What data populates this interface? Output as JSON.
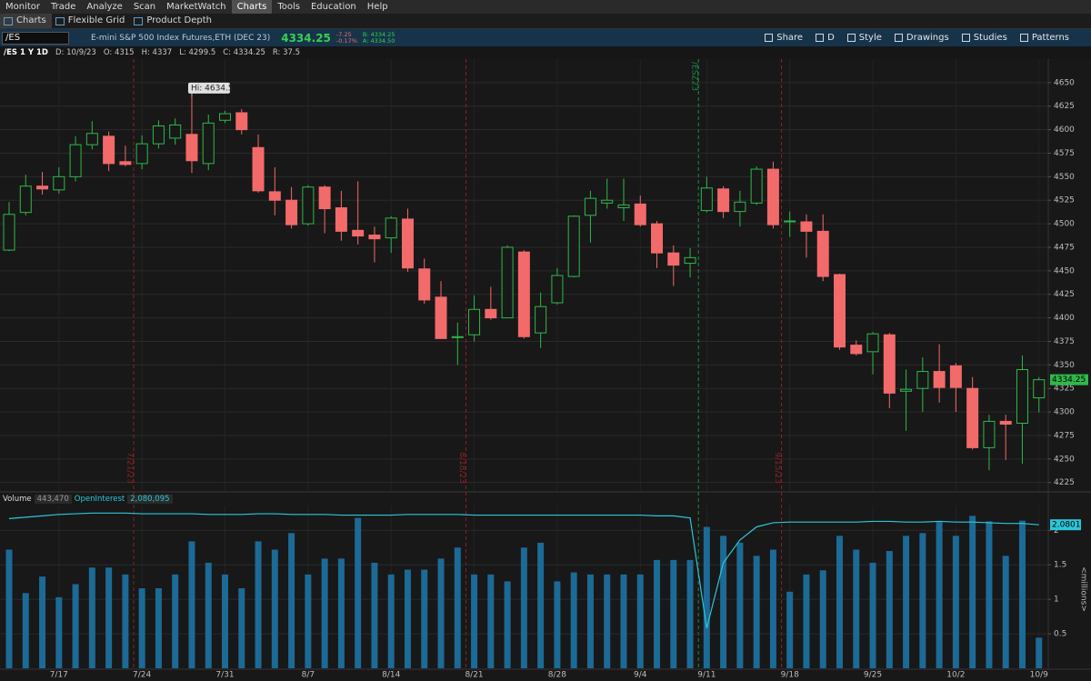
{
  "ui": {
    "menu": [
      "Monitor",
      "Trade",
      "Analyze",
      "Scan",
      "MarketWatch",
      "Charts",
      "Tools",
      "Education",
      "Help"
    ],
    "active_menu_index": 5,
    "tabs": [
      "Charts",
      "Flexible Grid",
      "Product Depth"
    ],
    "symbol": "/ES",
    "description": "E-mini S&P 500 Index Futures,ETH (DEC 23)",
    "last": "4334.25",
    "change": "-7.25",
    "change_pct": "-0.17%",
    "bid": "B: 4334.25",
    "ask": "A: 4334.50",
    "toolbar": [
      "Share",
      "D",
      "Style",
      "Drawings",
      "Studies",
      "Patterns"
    ],
    "chart_header": [
      "/ES 1 Y 1D",
      "D: 10/9/23",
      "O: 4315",
      "H: 4337",
      "L: 4299.5",
      "C: 4334.25",
      "R: 37.5"
    ]
  },
  "chart_data": [
    {
      "type": "candlestick",
      "categories": [
        null,
        null,
        null,
        "7/17",
        null,
        null,
        null,
        null,
        "7/24",
        null,
        null,
        null,
        null,
        "7/31",
        null,
        null,
        null,
        null,
        "8/7",
        null,
        null,
        null,
        null,
        "8/14",
        null,
        null,
        null,
        null,
        "8/21",
        null,
        null,
        null,
        null,
        "8/28",
        null,
        null,
        null,
        null,
        "9/4",
        null,
        null,
        null,
        "9/11",
        null,
        null,
        null,
        null,
        "9/18",
        null,
        null,
        null,
        null,
        "9/25",
        null,
        null,
        null,
        null,
        "10/2",
        null,
        null,
        null,
        null,
        "10/9"
      ],
      "open": [
        4472,
        4512,
        4540,
        4536,
        4550,
        4584,
        4593,
        4566,
        4564,
        4585,
        4591,
        4595,
        4564,
        4610,
        4618,
        4581,
        4534,
        4525,
        4500,
        4539,
        4517,
        4493,
        4488,
        4485,
        4505,
        4452,
        4422,
        4379,
        4382,
        4409,
        4400,
        4470,
        4384,
        4416,
        4444,
        4509,
        4522,
        4517,
        4521,
        4500,
        4469,
        4458,
        4514,
        4537,
        4513,
        4522,
        4558,
        4502,
        4502,
        4492,
        4446,
        4371,
        4364,
        4382,
        4322,
        4325,
        4343,
        4349,
        4325,
        4262,
        4290,
        4288,
        4315
      ],
      "high": [
        4523,
        4552,
        4555,
        4560,
        4593,
        4609,
        4598,
        4583,
        4594,
        4610,
        4612,
        4634.5,
        4616,
        4620,
        4622,
        4595,
        4560,
        4539,
        4541,
        4541,
        4535,
        4545,
        4497,
        4508,
        4516,
        4463,
        4439,
        4395,
        4424,
        4433,
        4477,
        4472,
        4427,
        4453,
        4509,
        4535,
        4548,
        4548,
        4530,
        4503,
        4477,
        4474,
        4550,
        4540,
        4535,
        4561,
        4566,
        4513,
        4510,
        4510,
        4447,
        4376,
        4385,
        4384,
        4345,
        4358,
        4372,
        4352,
        4337,
        4297,
        4297,
        4360,
        4337
      ],
      "low": [
        4471,
        4509,
        4531,
        4532,
        4545,
        4579,
        4556,
        4561,
        4558,
        4580,
        4584,
        4554,
        4557,
        4607,
        4595,
        4533,
        4509,
        4495,
        4498,
        4490,
        4482,
        4478,
        4459,
        4469,
        4449,
        4415,
        4378,
        4350,
        4375,
        4398,
        4400,
        4378,
        4368,
        4414,
        4443,
        4480,
        4516,
        4503,
        4497,
        4453,
        4434,
        4443,
        4512,
        4506,
        4497,
        4520,
        4495,
        4486,
        4464,
        4439,
        4366,
        4360,
        4340,
        4304,
        4280,
        4300,
        4310,
        4300,
        4260,
        4238,
        4249,
        4245,
        4299.5
      ],
      "close": [
        4510,
        4540,
        4537,
        4550,
        4584,
        4596,
        4564,
        4563,
        4585,
        4604,
        4605,
        4567,
        4607,
        4617,
        4600,
        4535,
        4525,
        4499,
        4539,
        4516,
        4492,
        4487,
        4484,
        4506,
        4453,
        4419,
        4378,
        4380,
        4409,
        4400,
        4475,
        4380,
        4412,
        4445,
        4508,
        4527,
        4525,
        4520,
        4499,
        4469,
        4456,
        4464,
        4538,
        4513,
        4523,
        4558,
        4499,
        4503,
        4492,
        4444,
        4369,
        4362,
        4383,
        4320,
        4324,
        4343,
        4326,
        4326,
        4262,
        4290,
        4287,
        4345,
        4334.25
      ],
      "up_color": "#2fb84a",
      "down_color": "#f36a6a",
      "ylim": [
        4216,
        4675
      ],
      "yticks": [
        4225,
        4250,
        4275,
        4300,
        4325,
        4350,
        4375,
        4400,
        4425,
        4450,
        4475,
        4500,
        4525,
        4550,
        4575,
        4600,
        4625,
        4650
      ],
      "grid": true,
      "high_label": "Hi: 4634.5",
      "event_lines": [
        {
          "label": "7/21/23",
          "index": 7,
          "color": "#8a2323",
          "label_position": "bottom"
        },
        {
          "label": "8/18/23",
          "index": 27,
          "color": "#8a2323",
          "label_position": "bottom"
        },
        {
          "label": "/ESZ23",
          "index": 41,
          "color": "#1e8a45",
          "label_position": "top"
        },
        {
          "label": "9/15/23",
          "index": 46,
          "color": "#8a2323",
          "label_position": "bottom"
        }
      ]
    },
    {
      "type": "bar",
      "y_label": "<millions>",
      "series": [
        {
          "name": "Volume",
          "type": "bar",
          "color": "#1c6a96",
          "header_value": "443,470",
          "values": [
            1.72,
            1.09,
            1.33,
            1.03,
            1.22,
            1.46,
            1.46,
            1.36,
            1.16,
            1.16,
            1.36,
            1.84,
            1.53,
            1.36,
            1.16,
            1.84,
            1.72,
            1.96,
            1.36,
            1.59,
            1.59,
            2.18,
            1.53,
            1.36,
            1.43,
            1.43,
            1.59,
            1.75,
            1.36,
            1.36,
            1.26,
            1.75,
            1.82,
            1.26,
            1.39,
            1.36,
            1.36,
            1.36,
            1.36,
            1.57,
            1.57,
            1.57,
            2.05,
            1.92,
            1.82,
            1.63,
            1.72,
            1.11,
            1.36,
            1.42,
            1.92,
            1.72,
            1.53,
            1.7,
            1.92,
            1.96,
            2.12,
            1.92,
            2.21,
            2.13,
            1.63,
            2.14,
            0.44347
          ]
        },
        {
          "name": "OpenInterest",
          "type": "line",
          "color": "#2cc6d8",
          "header_value": "2,080,095",
          "axis_label": "2.0801",
          "values": [
            2.17,
            2.19,
            2.21,
            2.23,
            2.24,
            2.25,
            2.25,
            2.25,
            2.24,
            2.24,
            2.24,
            2.24,
            2.23,
            2.23,
            2.23,
            2.24,
            2.24,
            2.23,
            2.23,
            2.23,
            2.22,
            2.22,
            2.22,
            2.22,
            2.23,
            2.23,
            2.23,
            2.23,
            2.22,
            2.22,
            2.22,
            2.22,
            2.22,
            2.22,
            2.22,
            2.22,
            2.22,
            2.22,
            2.22,
            2.21,
            2.21,
            2.18,
            0.58,
            1.53,
            1.86,
            2.05,
            2.11,
            2.12,
            2.12,
            2.12,
            2.12,
            2.12,
            2.13,
            2.13,
            2.12,
            2.12,
            2.13,
            2.12,
            2.12,
            2.11,
            2.1,
            2.1,
            2.080095
          ]
        }
      ],
      "ylim": [
        0,
        2.32
      ],
      "yticks": [
        0.5,
        1,
        1.5,
        2
      ],
      "grid": true
    }
  ]
}
